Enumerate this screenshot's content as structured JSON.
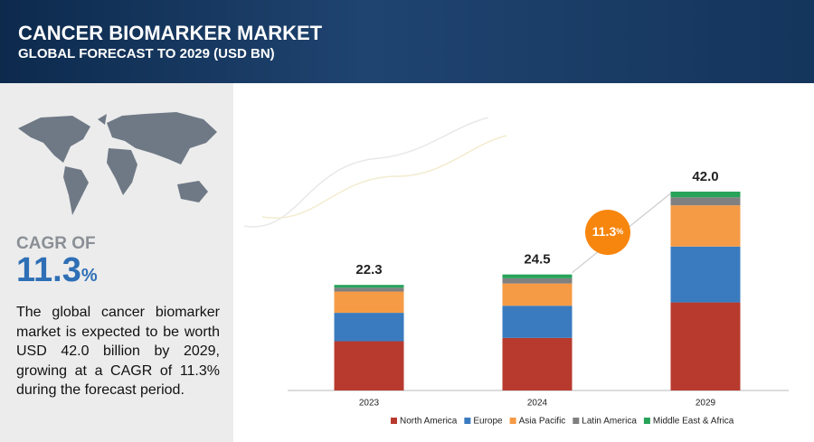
{
  "header": {
    "title": "CANCER BIOMARKER MARKET",
    "subtitle": "GLOBAL FORECAST TO 2029 (USD BN)"
  },
  "sidebar": {
    "cagr_label": "CAGR OF",
    "cagr_value": "11.3",
    "cagr_unit": "%",
    "text": "The global cancer biomarker market is expected to be worth USD 42.0 billion by 2029, growing at a CAGR of 11.3% during the forecast period."
  },
  "chart_data": {
    "type": "stacked-bar",
    "categories": [
      "2023",
      "2024",
      "2029"
    ],
    "series": [
      {
        "name": "North America",
        "color": "#b83a2e",
        "values": [
          10.4,
          11.1,
          18.6
        ]
      },
      {
        "name": "Europe",
        "color": "#3a7bbf",
        "values": [
          6.0,
          6.8,
          11.8
        ]
      },
      {
        "name": "Asia Pacific",
        "color": "#f59b45",
        "values": [
          4.5,
          4.7,
          8.7
        ]
      },
      {
        "name": "Latin America",
        "color": "#808080",
        "values": [
          0.8,
          1.1,
          1.7
        ]
      },
      {
        "name": "Middle East & Africa",
        "color": "#27a35a",
        "values": [
          0.6,
          0.8,
          1.2
        ]
      }
    ],
    "totals": {
      "values": [
        22.3,
        24.5,
        42.0
      ],
      "value_labels": [
        "22.3",
        "24.5",
        "42.0"
      ]
    },
    "cagr_bubble": {
      "value": "11.3",
      "unit": "%",
      "color": "#f7860f"
    }
  }
}
